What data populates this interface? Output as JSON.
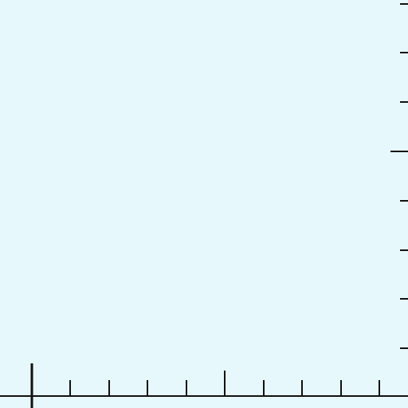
{
  "canvas": {
    "background_color": "#e6f8fc",
    "stroke_color": "#111111"
  },
  "ruler": {
    "horizontal_tick_count": 10,
    "vertical_tick_count": 8
  }
}
